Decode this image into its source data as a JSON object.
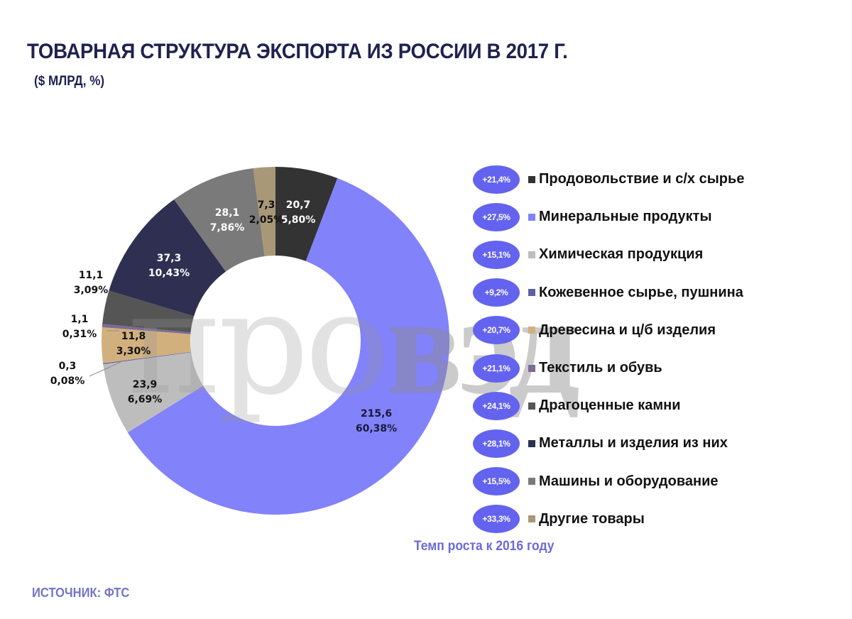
{
  "header": {
    "title": "ТОВАРНАЯ СТРУКТУРА ЭКСПОРТА ИЗ РОССИИ В 2017 Г.",
    "subtitle": "($ МЛРД, %)"
  },
  "watermark": {
    "light": "про",
    "bold": "вэд"
  },
  "labels": {
    "food": {
      "value": "20,7",
      "pct": "5,80%"
    },
    "mineral": {
      "value": "215,6",
      "pct": "60,38%"
    },
    "chemical": {
      "value": "23,9",
      "pct": "6,69%"
    },
    "leather": {
      "value": "0,3",
      "pct": "0,08%"
    },
    "wood": {
      "value": "11,8",
      "pct": "3,30%"
    },
    "textile": {
      "value": "1,1",
      "pct": "0,31%"
    },
    "gems": {
      "value": "11,1",
      "pct": "3,09%"
    },
    "metals": {
      "value": "37,3",
      "pct": "10,43%"
    },
    "machinery": {
      "value": "28,1",
      "pct": "7,86%"
    },
    "other": {
      "value": "7,3",
      "pct": "2,05%"
    }
  },
  "legend": [
    {
      "growth": "+21,4%",
      "label": "Продовольствие и с/х сырье",
      "color": "#333333"
    },
    {
      "growth": "+27,5%",
      "label": "Минеральные продукты",
      "color": "#8282fa"
    },
    {
      "growth": "+15,1%",
      "label": "Химическая продукция",
      "color": "#bdbdbd"
    },
    {
      "growth": "+9,2%",
      "label": "Кожевенное сырье, пушнина",
      "color": "#5f5fa8"
    },
    {
      "growth": "+20,7%",
      "label": "Древесина и ц/б изделия",
      "color": "#d2b07e"
    },
    {
      "growth": "+21,1%",
      "label": "Текстиль и обувь",
      "color": "#7d6b94"
    },
    {
      "growth": "+24,1%",
      "label": "Драгоценные камни",
      "color": "#555555"
    },
    {
      "growth": "+28,1%",
      "label": "Металлы и изделия из них",
      "color": "#2f2f52"
    },
    {
      "growth": "+15,5%",
      "label": "Машины и оборудование",
      "color": "#7a7a7a"
    },
    {
      "growth": "+33,3%",
      "label": "Другие товары",
      "color": "#a89877"
    }
  ],
  "footer": {
    "growth_note": "Темп роста к 2016 году",
    "source": "ИСТОЧНИК: ФТС"
  },
  "chart_data": {
    "type": "pie",
    "variant": "donut",
    "title": "Товарная структура экспорта из России в 2017 г.",
    "subtitle": "($ млрд, %)",
    "categories": [
      "Продовольствие и с/х сырье",
      "Минеральные продукты",
      "Химическая продукция",
      "Кожевенное сырье, пушнина",
      "Древесина и ц/б изделия",
      "Текстиль и обувь",
      "Драгоценные камни",
      "Металлы и изделия из них",
      "Машины и оборудование",
      "Другие товары"
    ],
    "values": [
      20.7,
      215.6,
      23.9,
      0.3,
      11.8,
      1.1,
      11.1,
      37.3,
      28.1,
      7.3
    ],
    "percentages": [
      5.8,
      60.38,
      6.69,
      0.08,
      3.3,
      0.31,
      3.09,
      10.43,
      7.86,
      2.05
    ],
    "growth_vs_2016_pct": [
      21.4,
      27.5,
      15.1,
      9.2,
      20.7,
      21.1,
      24.1,
      28.1,
      15.5,
      33.3
    ],
    "colors": [
      "#333333",
      "#8282fa",
      "#bdbdbd",
      "#5f5fa8",
      "#d2b07e",
      "#7d6b94",
      "#555555",
      "#2f2f52",
      "#7a7a7a",
      "#a89877"
    ],
    "legend_position": "right",
    "annotation": "Темп роста к 2016 году",
    "source": "ФТС"
  }
}
